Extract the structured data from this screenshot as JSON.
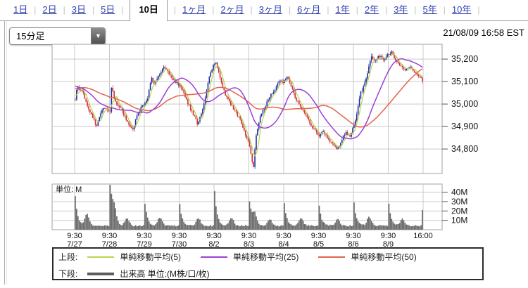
{
  "tabs": {
    "separator": "|",
    "items": [
      {
        "label": "1日",
        "active": false
      },
      {
        "label": "2日",
        "active": false
      },
      {
        "label": "3日",
        "active": false
      },
      {
        "label": "5日",
        "active": false
      },
      {
        "label": "10日",
        "active": true
      },
      {
        "label": "1ヶ月",
        "active": false
      },
      {
        "label": "2ヶ月",
        "active": false
      },
      {
        "label": "3ヶ月",
        "active": false
      },
      {
        "label": "6ヶ月",
        "active": false
      },
      {
        "label": "1年",
        "active": false
      },
      {
        "label": "2年",
        "active": false
      },
      {
        "label": "3年",
        "active": false
      },
      {
        "label": "5年",
        "active": false
      },
      {
        "label": "10年",
        "active": false
      }
    ]
  },
  "toolbar": {
    "interval_value": "15分足",
    "dropdown_arrow_glyph": "▼",
    "timestamp": "21/08/09 16:58 EST"
  },
  "chart_data": {
    "type": "candlestick+volume",
    "interval": "15分",
    "bars_per_day": 26,
    "seed": 11,
    "price_axis": {
      "ymin": 34691,
      "ymax": 35266,
      "ticks": [
        {
          "v": 35200,
          "label": "35,200"
        },
        {
          "v": 35100,
          "label": "35,100"
        },
        {
          "v": 35000,
          "label": "35,000"
        },
        {
          "v": 34900,
          "label": "34,900"
        },
        {
          "v": 34800,
          "label": "34,800"
        }
      ]
    },
    "volume_axis": {
      "max": 48.75,
      "unit_label": "単位: M",
      "ticks": [
        {
          "v": 40,
          "label": "40M"
        },
        {
          "v": 30,
          "label": "30M"
        },
        {
          "v": 20,
          "label": "20M"
        },
        {
          "v": 10,
          "label": "10M"
        }
      ]
    },
    "x_axis": {
      "open_label": "9:30",
      "close_label": "16:00"
    },
    "ma_prehistory": [
      [
        0,
        35020
      ],
      [
        0.3,
        35060
      ],
      [
        0.6,
        35120
      ],
      [
        1,
        35035
      ]
    ],
    "days": [
      {
        "date": "7/27",
        "open": 35020,
        "high": 35095,
        "low": 34875,
        "close": 34968,
        "noise": 14,
        "wick": 11,
        "path": [
          [
            0,
            35020
          ],
          [
            0.06,
            35085
          ],
          [
            0.12,
            35060
          ],
          [
            0.2,
            35070
          ],
          [
            0.3,
            35010
          ],
          [
            0.42,
            34975
          ],
          [
            0.55,
            34935
          ],
          [
            0.63,
            34895
          ],
          [
            0.72,
            34940
          ],
          [
            0.85,
            34985
          ],
          [
            1,
            34968
          ]
        ],
        "vol": {
          "spike": 31,
          "base": 3.5,
          "bumps": [
            [
              0.35,
              12
            ]
          ]
        }
      },
      {
        "date": "7/28",
        "open": 34965,
        "high": 35115,
        "low": 34878,
        "close": 34995,
        "noise": 13,
        "wick": 11,
        "path": [
          [
            0,
            34965
          ],
          [
            0.05,
            35105
          ],
          [
            0.1,
            35030
          ],
          [
            0.2,
            35000
          ],
          [
            0.3,
            34990
          ],
          [
            0.45,
            34940
          ],
          [
            0.58,
            34905
          ],
          [
            0.68,
            34890
          ],
          [
            0.8,
            34945
          ],
          [
            0.92,
            34985
          ],
          [
            1,
            34995
          ]
        ],
        "vol": {
          "spike": 45,
          "base": 3.5,
          "bumps": [
            [
              0.12,
              16
            ],
            [
              0.5,
              8
            ]
          ]
        }
      },
      {
        "date": "7/29",
        "open": 35000,
        "high": 35172,
        "low": 34990,
        "close": 35085,
        "noise": 12,
        "wick": 11,
        "path": [
          [
            0,
            35000
          ],
          [
            0.1,
            35035
          ],
          [
            0.18,
            35120
          ],
          [
            0.25,
            35090
          ],
          [
            0.35,
            35110
          ],
          [
            0.5,
            35150
          ],
          [
            0.58,
            35165
          ],
          [
            0.7,
            35140
          ],
          [
            0.85,
            35110
          ],
          [
            1,
            35085
          ]
        ],
        "vol": {
          "spike": 24,
          "base": 3.5,
          "bumps": [
            [
              0.45,
              9
            ]
          ]
        }
      },
      {
        "date": "7/30",
        "open": 35080,
        "high": 35180,
        "low": 34895,
        "close": 35170,
        "noise": 12,
        "wick": 10,
        "path": [
          [
            0,
            35080
          ],
          [
            0.1,
            35060
          ],
          [
            0.25,
            35000
          ],
          [
            0.4,
            34955
          ],
          [
            0.52,
            34915
          ],
          [
            0.62,
            34950
          ],
          [
            0.75,
            35020
          ],
          [
            0.88,
            35120
          ],
          [
            1,
            35170
          ]
        ],
        "vol": {
          "spike": 23,
          "base": 3.5,
          "bumps": [
            [
              0.55,
              8
            ]
          ]
        }
      },
      {
        "date": "8/2",
        "open": 35175,
        "high": 35195,
        "low": 34815,
        "close": 34835,
        "noise": 12,
        "wick": 10,
        "path": [
          [
            0,
            35175
          ],
          [
            0.05,
            35185
          ],
          [
            0.15,
            35120
          ],
          [
            0.3,
            35050
          ],
          [
            0.45,
            35005
          ],
          [
            0.6,
            34970
          ],
          [
            0.75,
            34930
          ],
          [
            0.88,
            34880
          ],
          [
            1,
            34835
          ]
        ],
        "vol": {
          "spike": 37,
          "base": 3.5,
          "bumps": [
            [
              0.5,
              9
            ]
          ]
        }
      },
      {
        "date": "8/3",
        "open": 34815,
        "high": 35125,
        "low": 34720,
        "close": 35100,
        "noise": 12,
        "wick": 10,
        "path": [
          [
            0,
            34815
          ],
          [
            0.08,
            34740
          ],
          [
            0.12,
            34725
          ],
          [
            0.2,
            34860
          ],
          [
            0.3,
            34935
          ],
          [
            0.45,
            34985
          ],
          [
            0.6,
            35035
          ],
          [
            0.75,
            35065
          ],
          [
            0.9,
            35105
          ],
          [
            1,
            35100
          ]
        ],
        "vol": {
          "spike": 26,
          "base": 3.5,
          "bumps": [
            [
              0.15,
              12
            ],
            [
              0.6,
              7
            ]
          ]
        }
      },
      {
        "date": "8/4",
        "open": 35105,
        "high": 35130,
        "low": 34850,
        "close": 34865,
        "noise": 11,
        "wick": 10,
        "path": [
          [
            0,
            35105
          ],
          [
            0.08,
            35125
          ],
          [
            0.2,
            35080
          ],
          [
            0.35,
            35020
          ],
          [
            0.5,
            34985
          ],
          [
            0.65,
            34945
          ],
          [
            0.8,
            34905
          ],
          [
            0.92,
            34880
          ],
          [
            1,
            34865
          ]
        ],
        "vol": {
          "spike": 24,
          "base": 3.5,
          "bumps": [
            [
              0.5,
              8
            ]
          ]
        }
      },
      {
        "date": "8/5",
        "open": 34860,
        "high": 34895,
        "low": 34788,
        "close": 34890,
        "noise": 11,
        "wick": 10,
        "path": [
          [
            0,
            34860
          ],
          [
            0.12,
            34880
          ],
          [
            0.25,
            34845
          ],
          [
            0.4,
            34825
          ],
          [
            0.55,
            34800
          ],
          [
            0.68,
            34845
          ],
          [
            0.8,
            34870
          ],
          [
            0.92,
            34855
          ],
          [
            1,
            34890
          ]
        ],
        "vol": {
          "spike": 21,
          "base": 3.5,
          "bumps": [
            [
              0.55,
              7
            ]
          ]
        }
      },
      {
        "date": "8/6",
        "open": 34905,
        "high": 35250,
        "low": 34895,
        "close": 35220,
        "noise": 12,
        "wick": 13,
        "path": [
          [
            0,
            34905
          ],
          [
            0.1,
            34975
          ],
          [
            0.2,
            35050
          ],
          [
            0.3,
            35085
          ],
          [
            0.4,
            35140
          ],
          [
            0.5,
            35210
          ],
          [
            0.62,
            35185
          ],
          [
            0.75,
            35215
          ],
          [
            0.88,
            35195
          ],
          [
            1,
            35220
          ]
        ],
        "vol": {
          "spike": 24,
          "base": 3.5,
          "bumps": [
            [
              0.45,
              9
            ]
          ]
        }
      },
      {
        "date": "8/9",
        "open": 35215,
        "high": 35235,
        "low": 35095,
        "close": 35105,
        "noise": 10,
        "wick": 9,
        "path": [
          [
            0,
            35215
          ],
          [
            0.08,
            35230
          ],
          [
            0.2,
            35195
          ],
          [
            0.35,
            35170
          ],
          [
            0.5,
            35150
          ],
          [
            0.62,
            35170
          ],
          [
            0.75,
            35145
          ],
          [
            0.88,
            35125
          ],
          [
            1,
            35105
          ]
        ],
        "vol": {
          "spike": 23,
          "base": 3.5,
          "bumps": [
            [
              0.4,
              7
            ]
          ],
          "end": 21
        }
      }
    ],
    "legend": {
      "upper_label": "上段:",
      "lower_label": "下段:",
      "ma_series": [
        {
          "label": "単純移動平均(5)",
          "window": 5,
          "color": "#b9d34b"
        },
        {
          "label": "単純移動平均(25)",
          "window": 25,
          "color": "#9c3fd6"
        },
        {
          "label": "単純移動平均(50)",
          "window": 50,
          "color": "#e2654a"
        }
      ],
      "volume_entry": {
        "label": "出来高 単位:(M株/口/枚)",
        "color": "#5d5d5d"
      }
    },
    "colors": {
      "up": "#1e2f9b",
      "down": "#cf2f3a",
      "volume": "#6a6a6a",
      "grid": "#c9c9c9",
      "border": "#a0a0a0",
      "tick": "#555555",
      "text": "#111111"
    }
  }
}
